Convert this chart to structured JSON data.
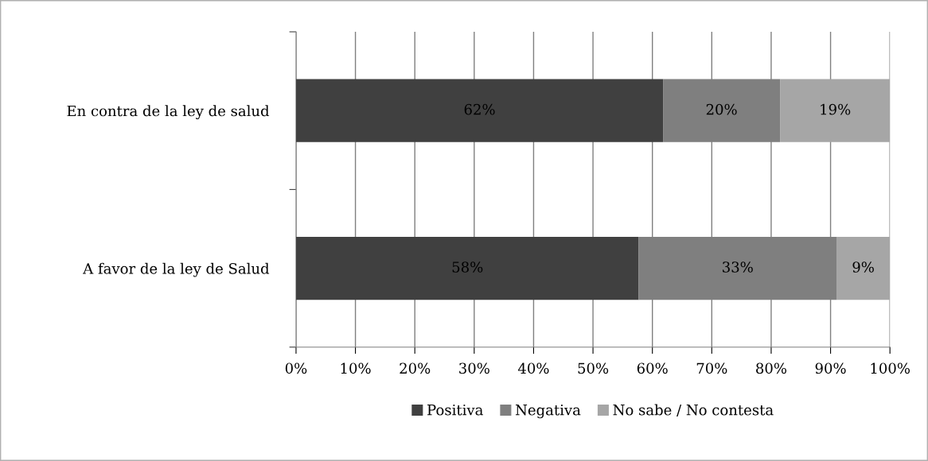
{
  "chart_data": {
    "type": "bar",
    "orientation": "horizontal",
    "stacked": true,
    "categories": [
      "En contra de la ley de salud",
      "A favor de la ley de Salud"
    ],
    "series": [
      {
        "name": "Positiva",
        "color": "#404040",
        "values": [
          61.8,
          57.7
        ],
        "value_labels": [
          "62%",
          "58%"
        ]
      },
      {
        "name": "Negativa",
        "color": "#7f7f7f",
        "values": [
          19.7,
          33.3
        ],
        "value_labels": [
          "20%",
          "33%"
        ]
      },
      {
        "name": "No sabe / No contesta",
        "color": "#a6a6a6",
        "values": [
          18.5,
          9.0
        ],
        "value_labels": [
          "19%",
          "9%"
        ]
      }
    ],
    "xlim": [
      0,
      100
    ],
    "xticks": [
      {
        "value": 0,
        "label": "0%"
      },
      {
        "value": 10,
        "label": "10%"
      },
      {
        "value": 20,
        "label": "20%"
      },
      {
        "value": 30,
        "label": "30%"
      },
      {
        "value": 40,
        "label": "40%"
      },
      {
        "value": 50,
        "label": "50%"
      },
      {
        "value": 60,
        "label": "60%"
      },
      {
        "value": 70,
        "label": "70%"
      },
      {
        "value": 80,
        "label": "80%"
      },
      {
        "value": 90,
        "label": "90%"
      },
      {
        "value": 100,
        "label": "100%"
      }
    ],
    "grid": "x",
    "legend": "bottom"
  }
}
